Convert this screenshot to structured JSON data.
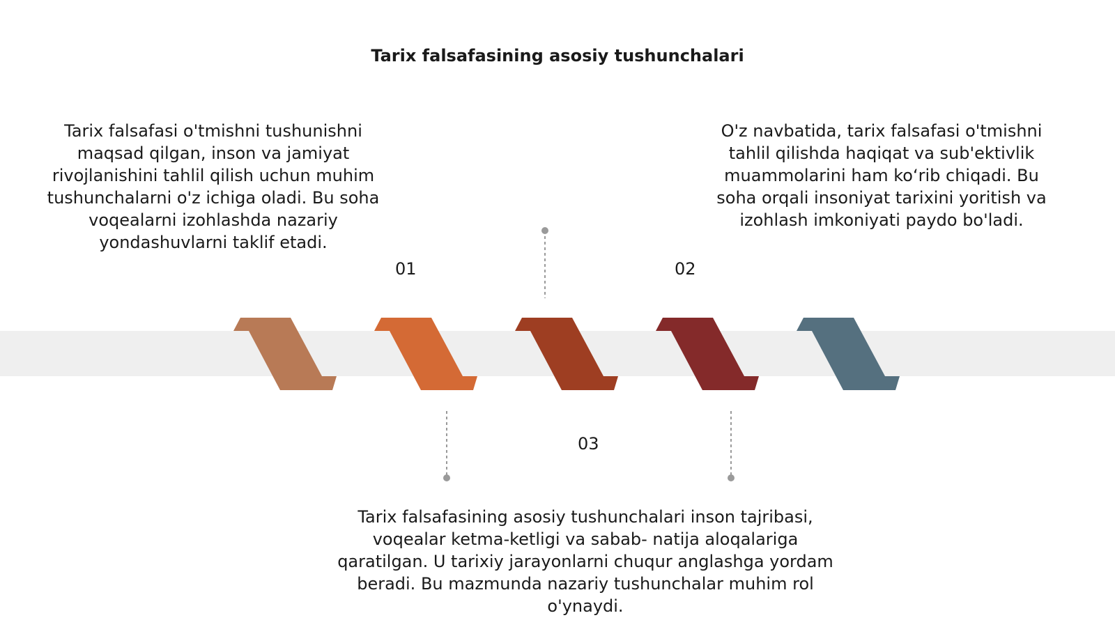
{
  "title": "Tarix falsafasining asosiy tushunchalari",
  "steps": [
    {
      "number": "01",
      "text": "Tarix falsafasi o'tmishni tushunishni maqsad qilgan, inson va jamiyat rivojlanishini tahlil qilish uchun muhim tushunchalarni o'z ichiga oladi. Bu soha voqealarni izohlashda nazariy yondashuvlarni taklif etadi."
    },
    {
      "number": "02",
      "text": "O'z navbatida, tarix falsafasi o'tmishni tahlil qilishda haqiqat va sub'ektivlik muammolarini ham ko‘rib chiqadi. Bu soha orqali insoniyat tarixini yoritish va izohlash imkoniyati paydo bo'ladi."
    },
    {
      "number": "03",
      "text": "Tarix falsafasining asosiy tushunchalari inson tajribasi, voqealar ketma-ketligi va sabab- natija aloqalariga qaratilgan. U tarixiy jarayonlarni chuqur anglashga yordam beradi. Bu mazmunda nazariy tushunchalar muhim rol o'ynaydi."
    }
  ],
  "colors": {
    "band": "#efefef",
    "chevrons": [
      "#b87a56",
      "#d46a35",
      "#9e3e22",
      "#842a2a",
      "#55707f"
    ],
    "connector": "#9a9a9a"
  }
}
